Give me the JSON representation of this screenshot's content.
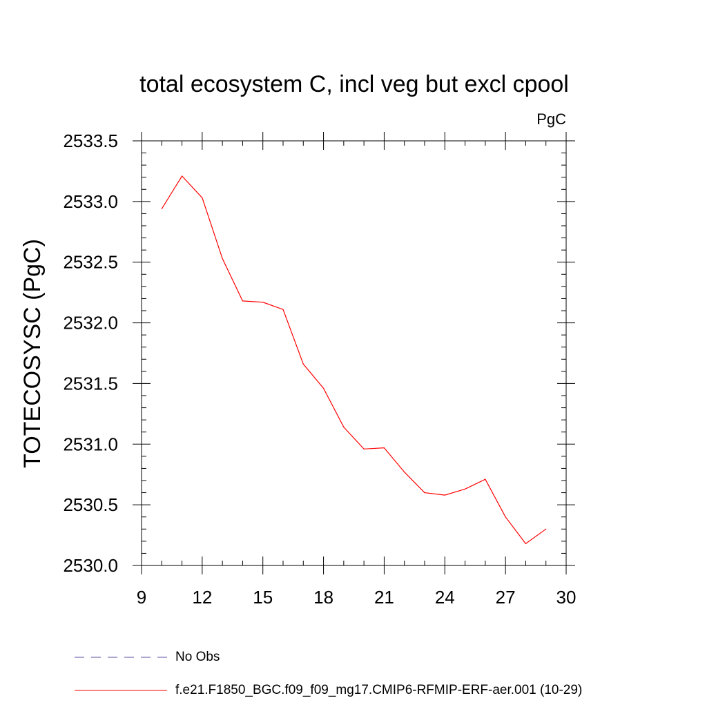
{
  "chart_data": {
    "type": "line",
    "title": "total ecosystem C, incl veg but excl cpool",
    "units": "PgC",
    "xlabel": "",
    "ylabel": "TOTECOSYSC  (PgC)",
    "xlim": [
      9,
      30
    ],
    "ylim": [
      2530.0,
      2533.5
    ],
    "x_ticks": [
      9,
      12,
      15,
      18,
      21,
      24,
      27,
      30
    ],
    "x_tick_labels": [
      "9",
      "12",
      "15",
      "18",
      "21",
      "24",
      "27",
      "30"
    ],
    "y_ticks": [
      2530.0,
      2530.5,
      2531.0,
      2531.5,
      2532.0,
      2532.5,
      2533.0,
      2533.5
    ],
    "y_tick_labels": [
      "2530.0",
      "2530.5",
      "2531.0",
      "2531.5",
      "2532.0",
      "2532.5",
      "2533.0",
      "2533.5"
    ],
    "x_minor_step": 1,
    "y_minor_step": 0.1,
    "series": [
      {
        "name": "f.e21.F1850_BGC.f09_f09_mg17.CMIP6-RFMIP-ERF-aer.001 (10-29)",
        "color": "#ff0000",
        "x": [
          10,
          11,
          12,
          13,
          14,
          15,
          16,
          17,
          18,
          19,
          20,
          21,
          22,
          23,
          24,
          25,
          26,
          27,
          28,
          29
        ],
        "values": [
          2532.94,
          2533.21,
          2533.03,
          2532.53,
          2532.18,
          2532.17,
          2532.11,
          2531.66,
          2531.46,
          2531.14,
          2530.96,
          2530.97,
          2530.77,
          2530.6,
          2530.58,
          2530.63,
          2530.71,
          2530.4,
          2530.18,
          2530.3
        ]
      }
    ],
    "legend": [
      {
        "label": "No Obs",
        "color": "#5a4fa0",
        "style": "dashed"
      },
      {
        "label": "f.e21.F1850_BGC.f09_f09_mg17.CMIP6-RFMIP-ERF-aer.001 (10-29)",
        "color": "#ff0000",
        "style": "solid"
      }
    ]
  }
}
